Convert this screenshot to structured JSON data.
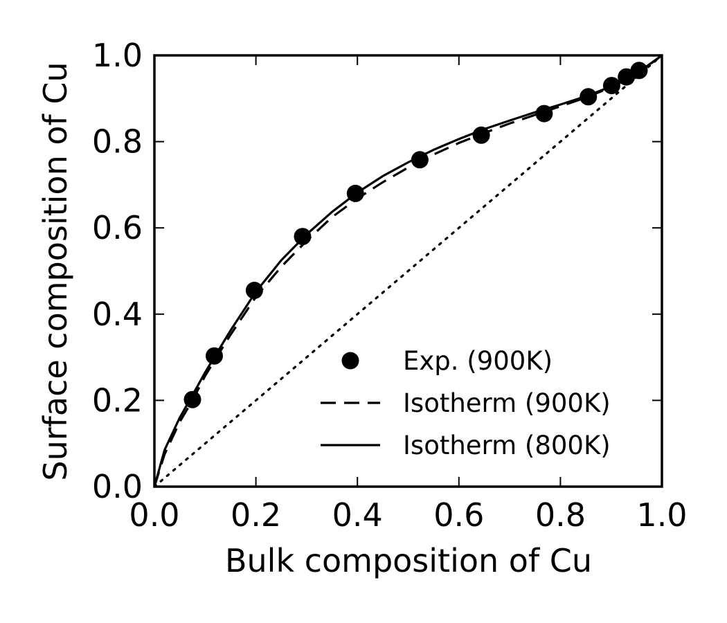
{
  "chart_data": {
    "type": "scatter",
    "xlabel": "Bulk composition of Cu",
    "ylabel": "Surface composition of Cu",
    "xlim": [
      0.0,
      1.0
    ],
    "ylim": [
      0.0,
      1.0
    ],
    "x_ticks": [
      "0.0",
      "0.2",
      "0.4",
      "0.6",
      "0.8",
      "1.0"
    ],
    "y_ticks": [
      "0.0",
      "0.2",
      "0.4",
      "0.6",
      "0.8",
      "1.0"
    ],
    "grid": false,
    "legend_position": "lower-right",
    "series": [
      {
        "name": "Exp. (900K)",
        "style": "markers",
        "points": [
          [
            0.075,
            0.202
          ],
          [
            0.118,
            0.303
          ],
          [
            0.197,
            0.455
          ],
          [
            0.292,
            0.58
          ],
          [
            0.396,
            0.68
          ],
          [
            0.523,
            0.758
          ],
          [
            0.644,
            0.815
          ],
          [
            0.768,
            0.865
          ],
          [
            0.855,
            0.904
          ],
          [
            0.901,
            0.93
          ],
          [
            0.93,
            0.95
          ],
          [
            0.955,
            0.965
          ]
        ]
      },
      {
        "name": "Isotherm (900K)",
        "style": "dashed",
        "points": [
          [
            0.0,
            0.0
          ],
          [
            0.02,
            0.075
          ],
          [
            0.05,
            0.15
          ],
          [
            0.075,
            0.2
          ],
          [
            0.1,
            0.257
          ],
          [
            0.15,
            0.352
          ],
          [
            0.2,
            0.44
          ],
          [
            0.25,
            0.51
          ],
          [
            0.3,
            0.57
          ],
          [
            0.35,
            0.625
          ],
          [
            0.4,
            0.668
          ],
          [
            0.45,
            0.706
          ],
          [
            0.5,
            0.74
          ],
          [
            0.55,
            0.77
          ],
          [
            0.6,
            0.797
          ],
          [
            0.65,
            0.82
          ],
          [
            0.7,
            0.842
          ],
          [
            0.75,
            0.862
          ],
          [
            0.8,
            0.882
          ],
          [
            0.85,
            0.902
          ],
          [
            0.9,
            0.926
          ],
          [
            0.95,
            0.956
          ],
          [
            1.0,
            1.0
          ]
        ]
      },
      {
        "name": "Isotherm (800K)",
        "style": "solid",
        "points": [
          [
            0.0,
            0.0
          ],
          [
            0.02,
            0.085
          ],
          [
            0.05,
            0.16
          ],
          [
            0.075,
            0.212
          ],
          [
            0.1,
            0.265
          ],
          [
            0.15,
            0.362
          ],
          [
            0.2,
            0.452
          ],
          [
            0.25,
            0.525
          ],
          [
            0.3,
            0.585
          ],
          [
            0.35,
            0.637
          ],
          [
            0.4,
            0.682
          ],
          [
            0.45,
            0.72
          ],
          [
            0.5,
            0.752
          ],
          [
            0.55,
            0.781
          ],
          [
            0.6,
            0.806
          ],
          [
            0.65,
            0.829
          ],
          [
            0.7,
            0.849
          ],
          [
            0.75,
            0.868
          ],
          [
            0.8,
            0.886
          ],
          [
            0.85,
            0.905
          ],
          [
            0.9,
            0.928
          ],
          [
            0.95,
            0.958
          ],
          [
            1.0,
            1.0
          ]
        ]
      },
      {
        "name": "",
        "style": "dotted",
        "points": [
          [
            0.0,
            0.0
          ],
          [
            1.0,
            1.0
          ]
        ]
      }
    ]
  }
}
